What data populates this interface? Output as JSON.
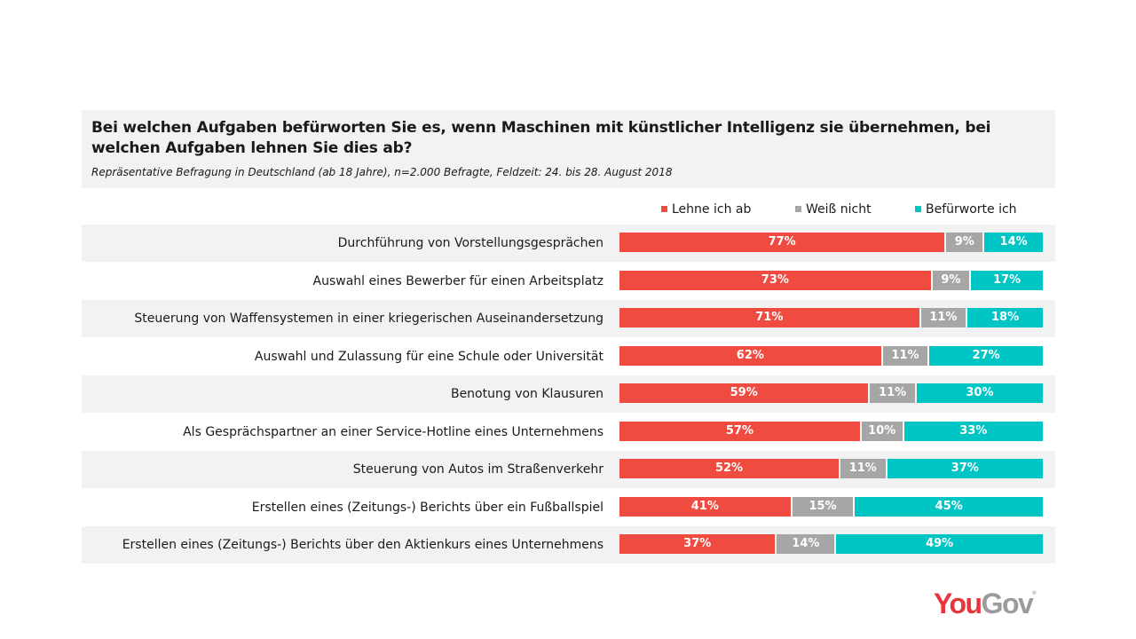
{
  "chart_data": {
    "type": "bar",
    "orientation": "horizontal",
    "stacked": true,
    "title": "Bei welchen Aufgaben befürworten Sie es, wenn Maschinen mit künstlicher Intelligenz sie übernehmen, bei welchen Aufgaben lehnen Sie dies ab?",
    "subtitle": "Repräsentative Befragung in Deutschland (ab 18 Jahre), n=2.000 Befragte, Feldzeit: 24. bis 28. August 2018",
    "xlabel": "",
    "ylabel": "",
    "xlim": [
      0,
      100
    ],
    "grid": false,
    "legend_position": "top-right",
    "categories": [
      "Durchführung von Vorstellungsgesprächen",
      "Auswahl eines Bewerber für einen Arbeitsplatz",
      "Steuerung von Waffensystemen in einer kriegerischen Auseinandersetzung",
      "Auswahl und Zulassung für eine Schule oder Universität",
      "Benotung von Klausuren",
      "Als Gesprächspartner an einer Service-Hotline eines Unternehmens",
      "Steuerung von Autos im Straßenverkehr",
      "Erstellen eines (Zeitungs-) Berichts über ein Fußballspiel",
      "Erstellen eines (Zeitungs-) Berichts über den Aktienkurs eines Unternehmens"
    ],
    "series": [
      {
        "name": "Lehne ich ab",
        "color": "#f04b41",
        "values": [
          77,
          73,
          71,
          62,
          59,
          57,
          52,
          41,
          37
        ]
      },
      {
        "name": "Weiß nicht",
        "color": "#a6a6a6",
        "values": [
          9,
          9,
          11,
          11,
          11,
          10,
          11,
          15,
          14
        ]
      },
      {
        "name": "Befürworte ich",
        "color": "#00c5c5",
        "values": [
          14,
          17,
          18,
          27,
          30,
          33,
          37,
          45,
          49
        ]
      }
    ],
    "value_suffix": "%"
  },
  "logo": {
    "part1": "You",
    "part2": "Gov",
    "mark": "®"
  }
}
